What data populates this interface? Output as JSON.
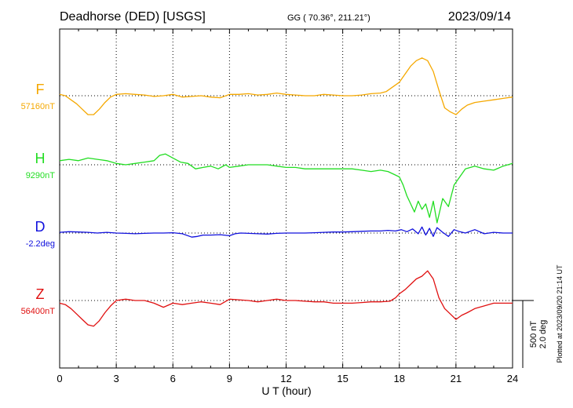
{
  "header": {
    "station": "Deadhorse (DED)  [USGS]",
    "coords": "GG ( 70.36°, 211.21°)",
    "date": "2023/09/14"
  },
  "footer_note": "Plotted at 2023/09/20 21:14 UT",
  "chart_data": {
    "type": "line",
    "title": "Deadhorse (DED)  [USGS]",
    "xlabel": "U T (hour)",
    "xlim": [
      0,
      24
    ],
    "x_ticks": [
      0,
      3,
      6,
      9,
      12,
      15,
      18,
      21,
      24
    ],
    "grid": true,
    "scale_bar": {
      "text1": "500 nT",
      "text2": "2.0 deg",
      "nT": 500,
      "deg": 2.0
    },
    "series": [
      {
        "name": "F",
        "baseline_label": "57160nT",
        "baseline": 57160,
        "unit": "nT",
        "color": "#f5a800",
        "x": [
          0,
          0.3,
          0.6,
          0.9,
          1.2,
          1.5,
          1.8,
          2.1,
          2.4,
          2.7,
          3.0,
          3.5,
          4.0,
          4.5,
          5.0,
          5.5,
          6.0,
          6.5,
          7.0,
          7.5,
          8.0,
          8.5,
          9.0,
          9.5,
          10.0,
          10.5,
          11.0,
          11.5,
          12.0,
          12.5,
          13.0,
          13.5,
          14.0,
          14.5,
          15.0,
          15.5,
          16.0,
          16.5,
          17.0,
          17.3,
          17.6,
          18.0,
          18.3,
          18.6,
          18.9,
          19.2,
          19.5,
          19.8,
          20.1,
          20.4,
          20.7,
          21.0,
          21.3,
          21.6,
          22.0,
          22.5,
          23.0,
          23.5,
          24.0
        ],
        "values": [
          57170,
          57160,
          57130,
          57100,
          57060,
          57020,
          57020,
          57060,
          57110,
          57150,
          57170,
          57175,
          57170,
          57165,
          57155,
          57160,
          57170,
          57150,
          57155,
          57160,
          57150,
          57145,
          57170,
          57170,
          57175,
          57165,
          57170,
          57180,
          57170,
          57165,
          57160,
          57160,
          57170,
          57165,
          57160,
          57160,
          57165,
          57175,
          57180,
          57190,
          57220,
          57260,
          57320,
          57380,
          57420,
          57440,
          57420,
          57340,
          57200,
          57070,
          57040,
          57020,
          57060,
          57090,
          57110,
          57120,
          57130,
          57140,
          57150
        ]
      },
      {
        "name": "H",
        "baseline_label": "9290nT",
        "baseline": 9290,
        "unit": "nT",
        "color": "#22dd22",
        "x": [
          0,
          0.5,
          1.0,
          1.5,
          2.0,
          2.5,
          3.0,
          3.5,
          4.0,
          4.5,
          5.0,
          5.3,
          5.6,
          6.0,
          6.4,
          6.8,
          7.2,
          7.6,
          8.0,
          8.4,
          8.8,
          9.0,
          9.5,
          10.0,
          10.5,
          11.0,
          11.5,
          12.0,
          12.5,
          13.0,
          13.5,
          14.0,
          14.5,
          15.0,
          15.5,
          16.0,
          16.5,
          17.0,
          17.4,
          17.7,
          18.0,
          18.2,
          18.4,
          18.6,
          18.8,
          19.0,
          19.2,
          19.4,
          19.6,
          19.8,
          20.0,
          20.3,
          20.6,
          20.9,
          21.2,
          21.5,
          22.0,
          22.5,
          23.0,
          23.5,
          24.0
        ],
        "values": [
          9320,
          9330,
          9320,
          9340,
          9330,
          9320,
          9300,
          9290,
          9300,
          9310,
          9320,
          9360,
          9370,
          9340,
          9310,
          9300,
          9260,
          9270,
          9280,
          9260,
          9290,
          9270,
          9280,
          9290,
          9290,
          9290,
          9280,
          9270,
          9270,
          9260,
          9260,
          9260,
          9260,
          9260,
          9260,
          9250,
          9240,
          9250,
          9240,
          9220,
          9200,
          9140,
          9060,
          9000,
          8940,
          9020,
          8960,
          9000,
          8900,
          9020,
          8860,
          9040,
          8980,
          9140,
          9200,
          9260,
          9280,
          9260,
          9250,
          9280,
          9300
        ]
      },
      {
        "name": "D",
        "baseline_label": "-2.2deg",
        "baseline": -2.2,
        "unit": "deg",
        "color": "#1010dd",
        "x": [
          0,
          0.5,
          1.0,
          1.5,
          2.0,
          2.5,
          3.0,
          3.5,
          4.0,
          4.5,
          5.0,
          5.5,
          6.0,
          6.5,
          7.0,
          7.3,
          7.6,
          8.0,
          8.5,
          9.0,
          9.3,
          9.6,
          10.0,
          10.5,
          11.0,
          11.5,
          12.0,
          12.5,
          13.0,
          13.5,
          14.0,
          14.5,
          15.0,
          15.5,
          16.0,
          16.5,
          17.0,
          17.4,
          17.8,
          18.1,
          18.4,
          18.7,
          19.0,
          19.2,
          19.4,
          19.6,
          19.8,
          20.0,
          20.3,
          20.6,
          20.9,
          21.2,
          21.5,
          22.0,
          22.5,
          23.0,
          23.5,
          24.0
        ],
        "values": [
          -2.18,
          -2.16,
          -2.17,
          -2.18,
          -2.2,
          -2.18,
          -2.2,
          -2.21,
          -2.22,
          -2.21,
          -2.2,
          -2.2,
          -2.19,
          -2.22,
          -2.32,
          -2.3,
          -2.26,
          -2.26,
          -2.25,
          -2.28,
          -2.22,
          -2.2,
          -2.21,
          -2.22,
          -2.23,
          -2.21,
          -2.2,
          -2.2,
          -2.2,
          -2.19,
          -2.18,
          -2.17,
          -2.17,
          -2.16,
          -2.15,
          -2.14,
          -2.14,
          -2.12,
          -2.14,
          -2.1,
          -2.16,
          -2.08,
          -2.22,
          -2.02,
          -2.26,
          -2.06,
          -2.3,
          -2.04,
          -2.18,
          -2.3,
          -2.1,
          -2.16,
          -2.2,
          -2.1,
          -2.22,
          -2.18,
          -2.2,
          -2.2
        ]
      },
      {
        "name": "Z",
        "baseline_label": "56400nT",
        "baseline": 56400,
        "unit": "nT",
        "color": "#e01010",
        "x": [
          0,
          0.3,
          0.6,
          0.9,
          1.2,
          1.5,
          1.8,
          2.1,
          2.4,
          2.7,
          3.0,
          3.5,
          4.0,
          4.5,
          5.0,
          5.5,
          6.0,
          6.5,
          7.0,
          7.5,
          8.0,
          8.5,
          9.0,
          9.5,
          10.0,
          10.5,
          11.0,
          11.5,
          12.0,
          12.5,
          13.0,
          13.5,
          14.0,
          14.5,
          15.0,
          15.5,
          16.0,
          16.5,
          17.0,
          17.5,
          17.8,
          18.0,
          18.3,
          18.6,
          18.9,
          19.2,
          19.5,
          19.8,
          20.1,
          20.4,
          20.7,
          21.0,
          21.3,
          21.6,
          22.0,
          22.5,
          23.0,
          23.5,
          24.0
        ],
        "values": [
          56380,
          56370,
          56340,
          56300,
          56260,
          56220,
          56210,
          56250,
          56310,
          56360,
          56400,
          56410,
          56400,
          56400,
          56380,
          56350,
          56380,
          56370,
          56380,
          56390,
          56380,
          56370,
          56410,
          56405,
          56400,
          56390,
          56400,
          56410,
          56400,
          56400,
          56395,
          56390,
          56390,
          56380,
          56380,
          56380,
          56385,
          56390,
          56390,
          56395,
          56420,
          56450,
          56480,
          56520,
          56560,
          56580,
          56620,
          56560,
          56420,
          56340,
          56300,
          56260,
          56290,
          56310,
          56340,
          56360,
          56380,
          56380,
          56380
        ]
      }
    ]
  }
}
